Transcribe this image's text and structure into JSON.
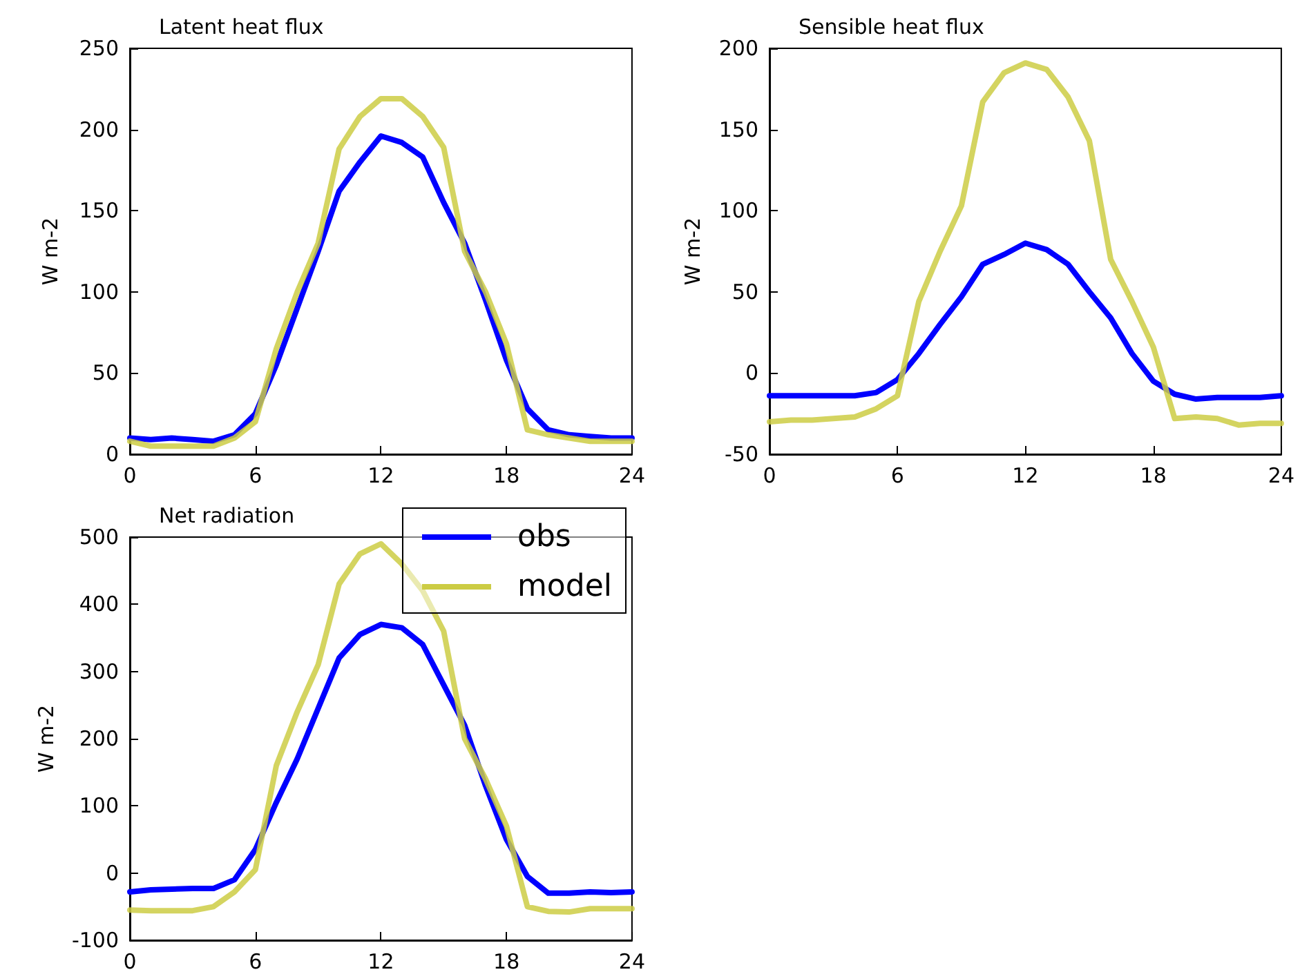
{
  "chart_data": [
    {
      "type": "line",
      "title": "Latent heat flux",
      "ylabel": "W m-2",
      "x": [
        0,
        1,
        2,
        3,
        4,
        5,
        6,
        7,
        8,
        9,
        10,
        11,
        12,
        13,
        14,
        15,
        16,
        17,
        18,
        19,
        20,
        21,
        22,
        23,
        24
      ],
      "xlim": [
        0,
        24
      ],
      "xticks": [
        0,
        6,
        12,
        18,
        24
      ],
      "ylim": [
        0,
        250
      ],
      "yticks": [
        0,
        50,
        100,
        150,
        200,
        250
      ],
      "grid": false,
      "legend": false,
      "marker": "none",
      "line_style": "solid",
      "series": [
        {
          "color": "#0000ff",
          "values": [
            10,
            9,
            10,
            9,
            8,
            12,
            25,
            55,
            90,
            125,
            162,
            180,
            196,
            192,
            183,
            155,
            130,
            95,
            58,
            28,
            15,
            12,
            11,
            10,
            10
          ]
        },
        {
          "color": "#cccc44",
          "values": [
            8,
            5,
            5,
            5,
            5,
            10,
            20,
            65,
            100,
            130,
            188,
            208,
            219,
            219,
            208,
            189,
            125,
            100,
            68,
            15,
            12,
            10,
            8,
            8,
            8
          ]
        }
      ]
    },
    {
      "type": "line",
      "title": "Sensible heat flux",
      "ylabel": "W m-2",
      "x": [
        0,
        1,
        2,
        3,
        4,
        5,
        6,
        7,
        8,
        9,
        10,
        11,
        12,
        13,
        14,
        15,
        16,
        17,
        18,
        19,
        20,
        21,
        22,
        23,
        24
      ],
      "xlim": [
        0,
        24
      ],
      "xticks": [
        0,
        6,
        12,
        18,
        24
      ],
      "ylim": [
        -50,
        200
      ],
      "yticks": [
        -50,
        0,
        50,
        100,
        150,
        200
      ],
      "grid": false,
      "legend": false,
      "marker": "none",
      "line_style": "solid",
      "series": [
        {
          "color": "#0000ff",
          "values": [
            -14,
            -14,
            -14,
            -14,
            -14,
            -12,
            -4,
            12,
            30,
            47,
            67,
            73,
            80,
            76,
            67,
            50,
            34,
            12,
            -5,
            -13,
            -16,
            -15,
            -15,
            -15,
            -14
          ]
        },
        {
          "color": "#cccc44",
          "values": [
            -30,
            -29,
            -29,
            -28,
            -27,
            -22,
            -14,
            44,
            75,
            103,
            167,
            185,
            191,
            187,
            170,
            143,
            70,
            44,
            16,
            -28,
            -27,
            -28,
            -32,
            -31,
            -31
          ]
        }
      ]
    },
    {
      "type": "line",
      "title": "Net radiation",
      "ylabel": "W m-2",
      "x": [
        0,
        1,
        2,
        3,
        4,
        5,
        6,
        7,
        8,
        9,
        10,
        11,
        12,
        13,
        14,
        15,
        16,
        17,
        18,
        19,
        20,
        21,
        22,
        23,
        24
      ],
      "xlim": [
        0,
        24
      ],
      "xticks": [
        0,
        6,
        12,
        18,
        24
      ],
      "ylim": [
        -100,
        500
      ],
      "yticks": [
        -100,
        0,
        100,
        200,
        300,
        400,
        500
      ],
      "grid": false,
      "legend": "top right",
      "marker": "none",
      "line_style": "solid",
      "series": [
        {
          "name": "obs",
          "color": "#0000ff",
          "values": [
            -28,
            -25,
            -24,
            -23,
            -23,
            -10,
            35,
            105,
            170,
            245,
            320,
            355,
            370,
            365,
            340,
            280,
            220,
            130,
            50,
            -5,
            -30,
            -30,
            -28,
            -29,
            -28
          ]
        },
        {
          "name": "model",
          "color": "#cccc44",
          "values": [
            -55,
            -56,
            -56,
            -56,
            -50,
            -28,
            5,
            160,
            240,
            310,
            430,
            475,
            490,
            460,
            420,
            360,
            200,
            140,
            70,
            -50,
            -57,
            -58,
            -53,
            -53,
            -53
          ]
        }
      ]
    }
  ]
}
